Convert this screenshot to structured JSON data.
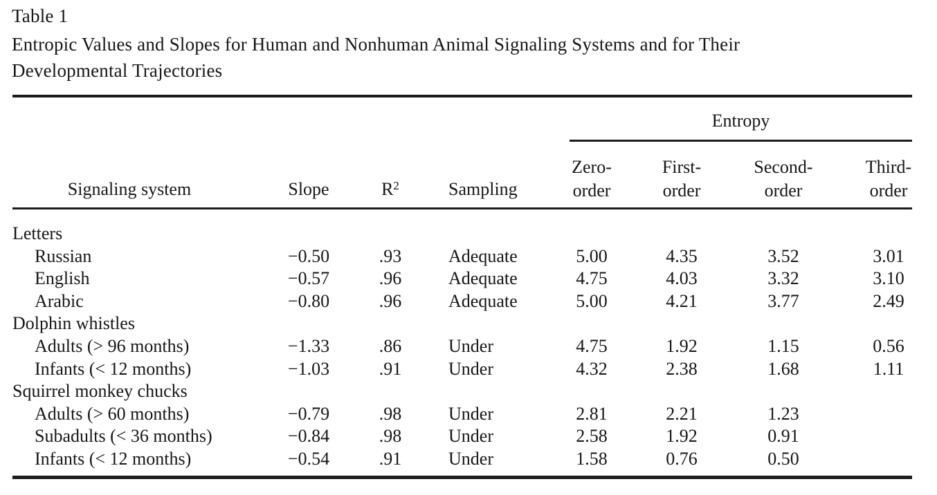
{
  "table": {
    "label": "Table 1",
    "title_lines": [
      "Entropic Values and Slopes for Human and Nonhuman Animal Signaling Systems and for Their",
      "Developmental Trajectories"
    ],
    "header": {
      "entropy_group": "Entropy",
      "signaling_system": "Signaling system",
      "slope": "Slope",
      "r2_base": "R",
      "r2_sup": "2",
      "sampling": "Sampling",
      "entropy_cols": [
        {
          "l1": "Zero-",
          "l2": "order"
        },
        {
          "l1": "First-",
          "l2": "order"
        },
        {
          "l1": "Second-",
          "l2": "order"
        },
        {
          "l1": "Third-",
          "l2": "order"
        }
      ]
    },
    "rows": [
      {
        "label": "Letters",
        "group": true,
        "slope": "",
        "r2": "",
        "sampling": "",
        "e0": "",
        "e1": "",
        "e2": "",
        "e3": ""
      },
      {
        "label": "Russian",
        "group": false,
        "slope": "−0.50",
        "r2": ".93",
        "sampling": "Adequate",
        "e0": "5.00",
        "e1": "4.35",
        "e2": "3.52",
        "e3": "3.01"
      },
      {
        "label": "English",
        "group": false,
        "slope": "−0.57",
        "r2": ".96",
        "sampling": "Adequate",
        "e0": "4.75",
        "e1": "4.03",
        "e2": "3.32",
        "e3": "3.10"
      },
      {
        "label": "Arabic",
        "group": false,
        "slope": "−0.80",
        "r2": ".96",
        "sampling": "Adequate",
        "e0": "5.00",
        "e1": "4.21",
        "e2": "3.77",
        "e3": "2.49"
      },
      {
        "label": "Dolphin whistles",
        "group": true,
        "slope": "",
        "r2": "",
        "sampling": "",
        "e0": "",
        "e1": "",
        "e2": "",
        "e3": ""
      },
      {
        "label": "Adults (> 96 months)",
        "group": false,
        "slope": "−1.33",
        "r2": ".86",
        "sampling": "Under",
        "e0": "4.75",
        "e1": "1.92",
        "e2": "1.15",
        "e3": "0.56"
      },
      {
        "label": "Infants (< 12 months)",
        "group": false,
        "slope": "−1.03",
        "r2": ".91",
        "sampling": "Under",
        "e0": "4.32",
        "e1": "2.38",
        "e2": "1.68",
        "e3": "1.11"
      },
      {
        "label": "Squirrel monkey chucks",
        "group": true,
        "slope": "",
        "r2": "",
        "sampling": "",
        "e0": "",
        "e1": "",
        "e2": "",
        "e3": ""
      },
      {
        "label": "Adults (> 60 months)",
        "group": false,
        "slope": "−0.79",
        "r2": ".98",
        "sampling": "Under",
        "e0": "2.81",
        "e1": "2.21",
        "e2": "1.23",
        "e3": ""
      },
      {
        "label": "Subadults (< 36 months)",
        "group": false,
        "slope": "−0.84",
        "r2": ".98",
        "sampling": "Under",
        "e0": "2.58",
        "e1": "1.92",
        "e2": "0.91",
        "e3": ""
      },
      {
        "label": "Infants (< 12 months)",
        "group": false,
        "slope": "−0.54",
        "r2": ".91",
        "sampling": "Under",
        "e0": "1.58",
        "e1": "0.76",
        "e2": "0.50",
        "e3": ""
      }
    ]
  }
}
